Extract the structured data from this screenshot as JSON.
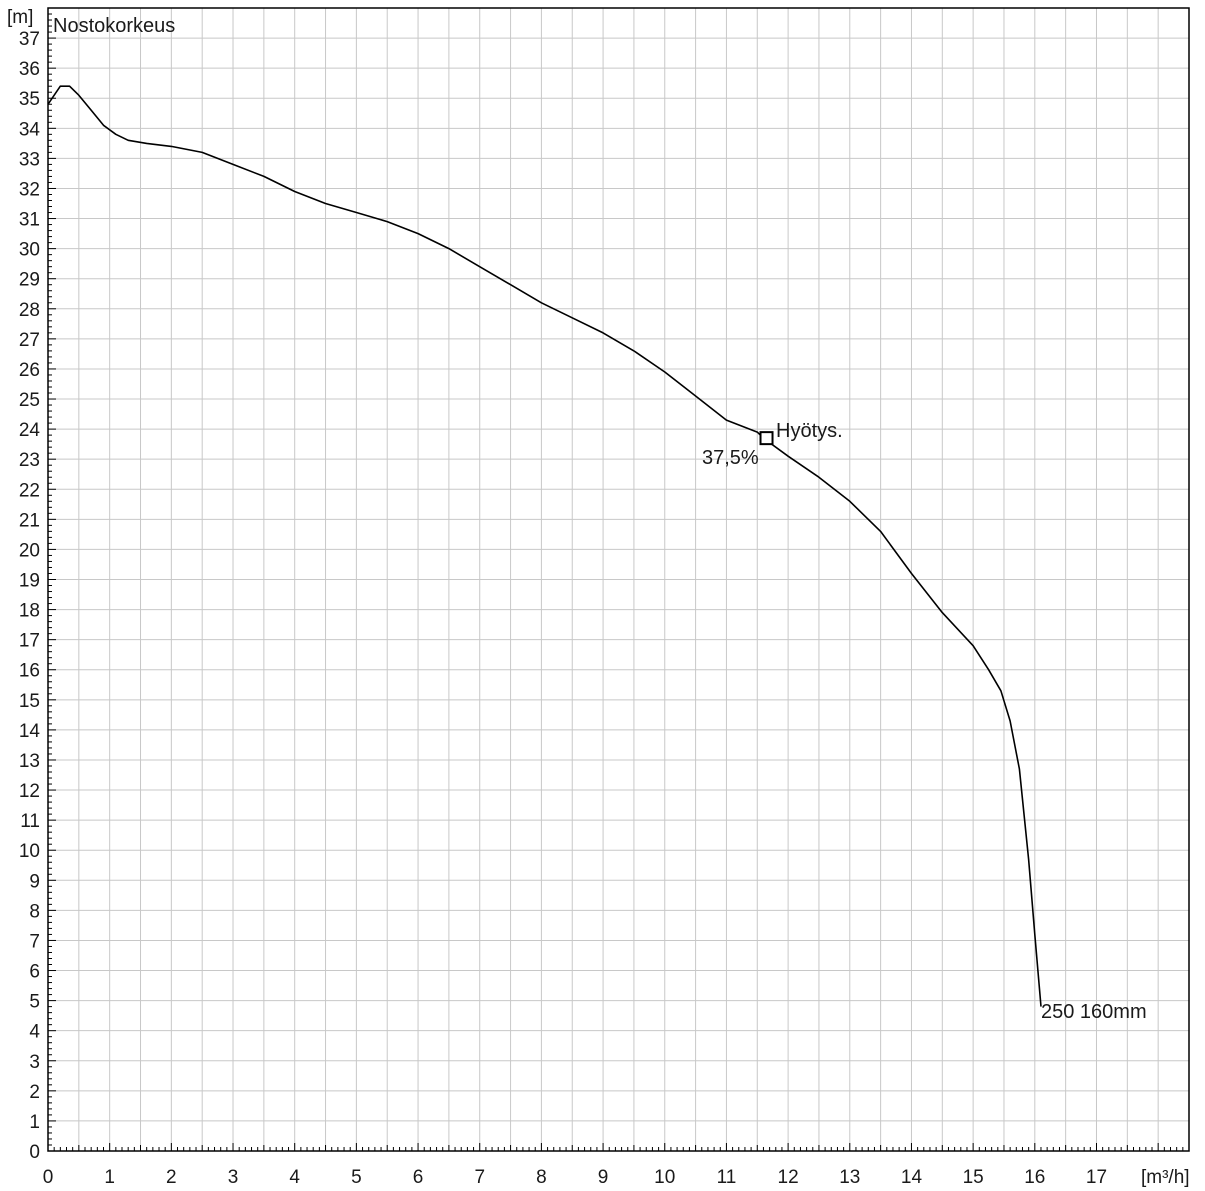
{
  "chart_data": {
    "type": "line",
    "title": "Nostokorkeus",
    "xlabel": "[m³/h]",
    "ylabel": "[m]",
    "xlim": [
      0,
      18.5
    ],
    "ylim": [
      0,
      38
    ],
    "x_ticks": [
      "0",
      "1",
      "2",
      "3",
      "4",
      "5",
      "6",
      "7",
      "8",
      "9",
      "10",
      "11",
      "12",
      "13",
      "14",
      "15",
      "16",
      "17"
    ],
    "y_ticks": [
      "0",
      "1",
      "2",
      "3",
      "4",
      "5",
      "6",
      "7",
      "8",
      "9",
      "10",
      "11",
      "12",
      "13",
      "14",
      "15",
      "16",
      "17",
      "18",
      "19",
      "20",
      "21",
      "22",
      "23",
      "24",
      "25",
      "26",
      "27",
      "28",
      "29",
      "30",
      "31",
      "32",
      "33",
      "34",
      "35",
      "36",
      "37"
    ],
    "grid": true,
    "colors": {
      "curve": "#000000",
      "grid": "#c8c8c8",
      "axis": "#000000",
      "marker": "#000000"
    },
    "series": [
      {
        "name": "250 160mm",
        "x": [
          0,
          0.2,
          0.35,
          0.5,
          0.7,
          0.9,
          1.1,
          1.3,
          1.6,
          2.0,
          2.5,
          3.0,
          3.5,
          4.0,
          4.5,
          5.0,
          5.5,
          6.0,
          6.5,
          7.0,
          7.5,
          8.0,
          8.5,
          9.0,
          9.5,
          10.0,
          10.5,
          11.0,
          11.5,
          11.6,
          12.0,
          12.5,
          13.0,
          13.5,
          14.0,
          14.5,
          15.0,
          15.25,
          15.45,
          15.6,
          15.75,
          15.9,
          16.0,
          16.1
        ],
        "y": [
          34.8,
          35.4,
          35.4,
          35.1,
          34.6,
          34.1,
          33.8,
          33.6,
          33.5,
          33.4,
          33.2,
          32.8,
          32.4,
          31.9,
          31.5,
          31.2,
          30.9,
          30.5,
          30.0,
          29.4,
          28.8,
          28.2,
          27.7,
          27.2,
          26.6,
          25.9,
          25.1,
          24.3,
          23.9,
          23.7,
          23.1,
          22.4,
          21.6,
          20.6,
          19.2,
          17.9,
          16.8,
          16.0,
          15.3,
          14.3,
          12.7,
          9.7,
          7.2,
          4.8
        ]
      }
    ],
    "annotations": [
      {
        "text": "Hyötys.",
        "x": 11.65,
        "y": 23.7
      },
      {
        "text": "37,5%",
        "x": 11.65,
        "y": 23.7
      },
      {
        "text": "250 160mm",
        "x": 16.1,
        "y": 4.8
      }
    ]
  }
}
